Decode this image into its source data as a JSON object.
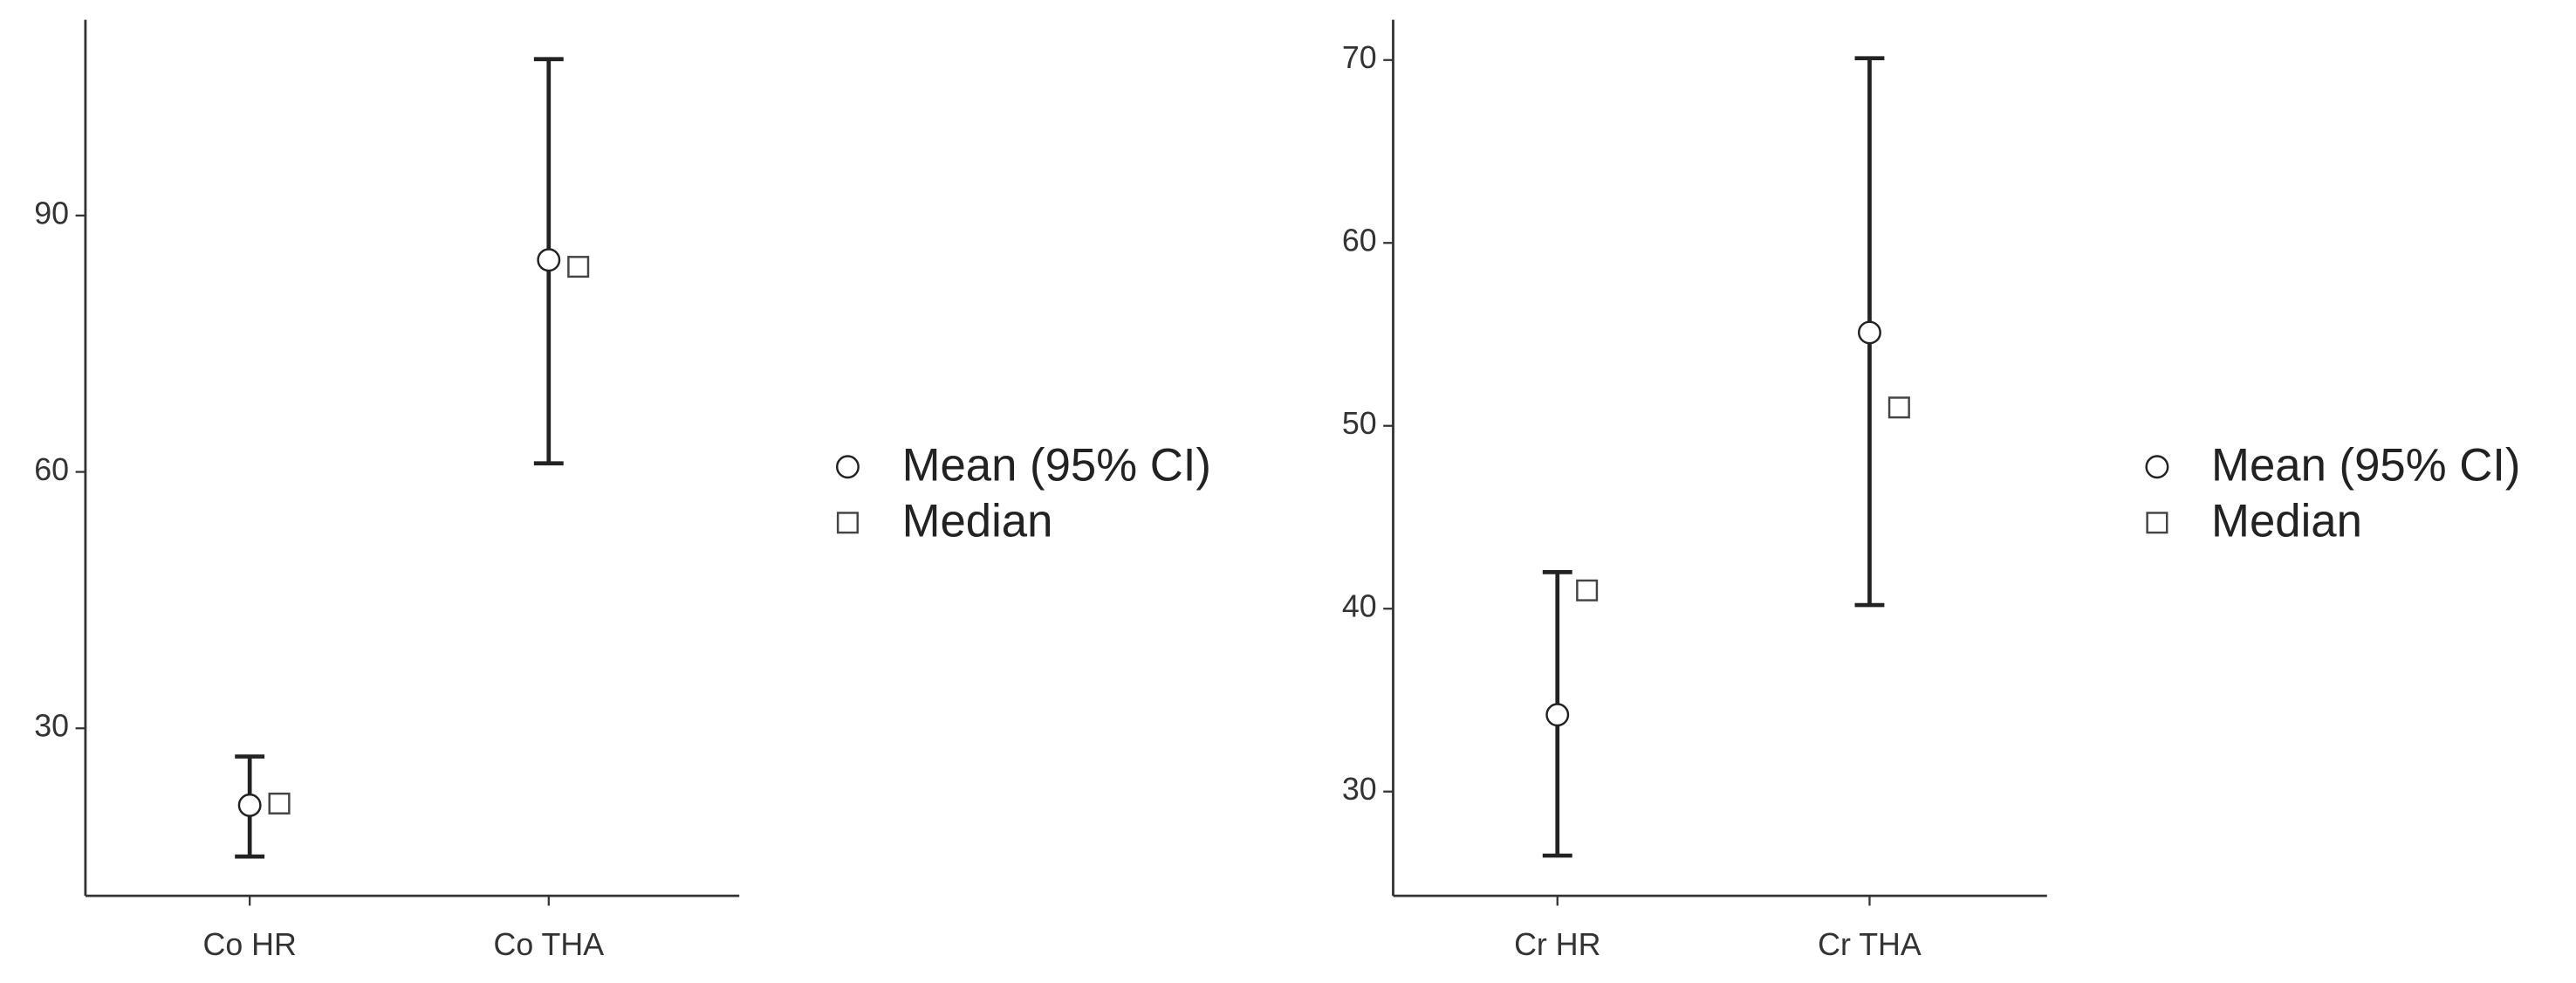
{
  "chart_data": [
    {
      "type": "errorbar",
      "categories": [
        "Co HR",
        "Co THA"
      ],
      "series": [
        {
          "name": "Mean (95% CI)",
          "marker": "circle",
          "color": "#222222",
          "values": [
            21,
            84.8
          ],
          "lower": [
            15,
            61
          ],
          "upper": [
            26.7,
            108.3
          ]
        },
        {
          "name": "Median",
          "marker": "square",
          "color": "#444444",
          "values": [
            21.2,
            84
          ]
        }
      ],
      "ylim": [
        10.4,
        112.9
      ],
      "yticks": [
        30,
        60,
        90
      ],
      "legend": "right"
    },
    {
      "type": "errorbar",
      "categories": [
        "Cr HR",
        "Cr THA"
      ],
      "series": [
        {
          "name": "Mean (95% CI)",
          "marker": "circle",
          "color": "#222222",
          "values": [
            34.2,
            55.1
          ],
          "lower": [
            26.5,
            40.2
          ],
          "upper": [
            42,
            70.1
          ]
        },
        {
          "name": "Median",
          "marker": "square",
          "color": "#444444",
          "values": [
            41,
            51
          ]
        }
      ],
      "ylim": [
        24.3,
        72.2
      ],
      "yticks": [
        30,
        40,
        50,
        60,
        70
      ],
      "legend": "right"
    }
  ]
}
